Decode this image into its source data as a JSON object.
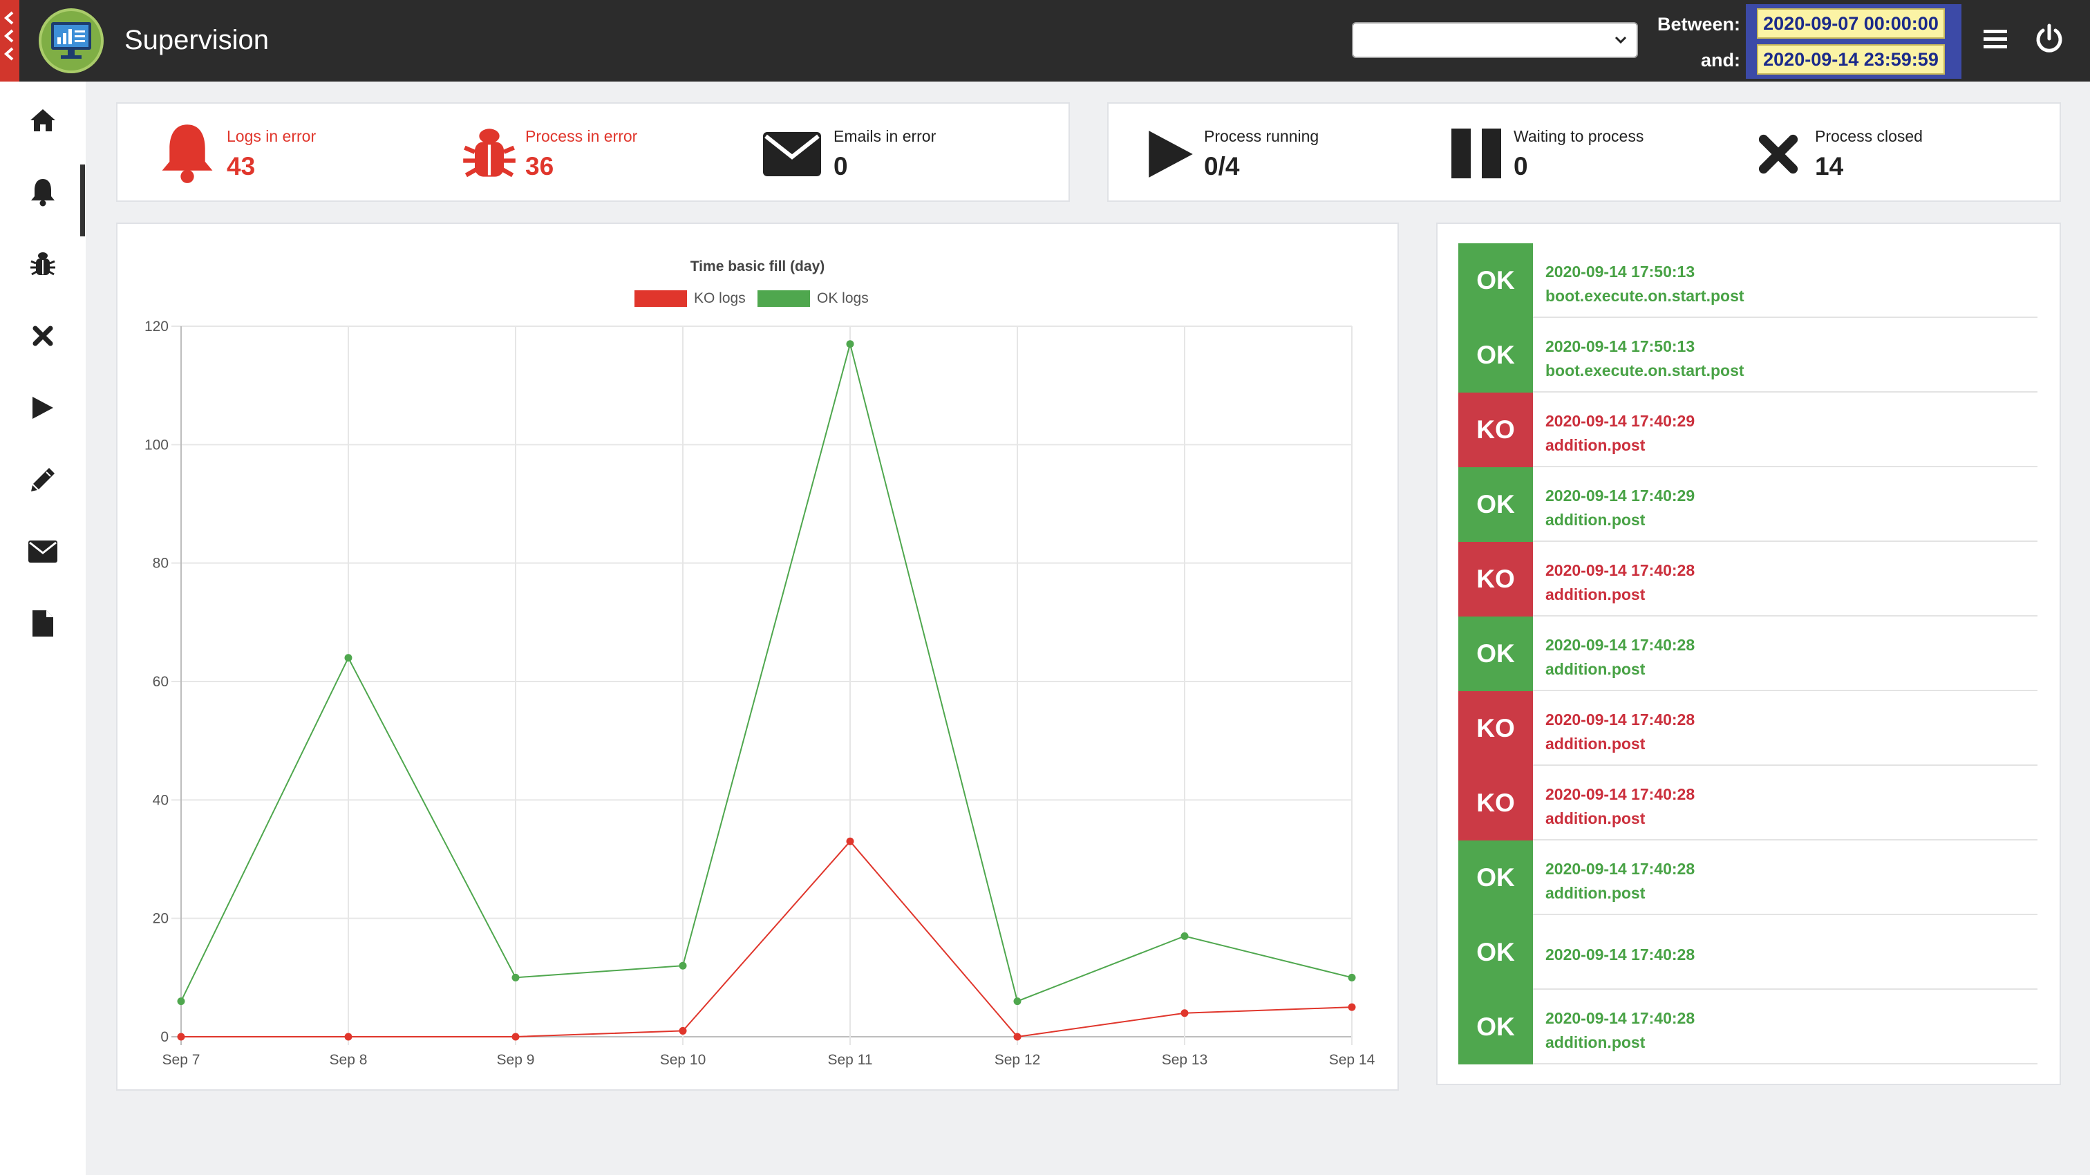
{
  "app": {
    "title": "Supervision"
  },
  "header": {
    "between_label": "Between:",
    "and_label": "and:",
    "date_from": "2020-09-07 00:00:00",
    "date_to": "2020-09-14 23:59:59",
    "process_select_value": ""
  },
  "sidebar": {
    "items": [
      {
        "name": "home",
        "icon": "home-icon"
      },
      {
        "name": "logs",
        "icon": "bell-icon"
      },
      {
        "name": "process-errors",
        "icon": "bug-icon"
      },
      {
        "name": "process-closed",
        "icon": "close-icon"
      },
      {
        "name": "process-running",
        "icon": "play-icon"
      },
      {
        "name": "edit",
        "icon": "pencil-icon"
      },
      {
        "name": "emails",
        "icon": "envelope-icon"
      },
      {
        "name": "documents",
        "icon": "file-icon"
      }
    ]
  },
  "stats_errors": [
    {
      "label": "Logs in error",
      "value": "43",
      "icon": "bell-icon",
      "color": "#e0362c"
    },
    {
      "label": "Process in error",
      "value": "36",
      "icon": "bug-icon",
      "color": "#e0362c"
    },
    {
      "label": "Emails in error",
      "value": "0",
      "icon": "envelope-icon",
      "color": "#222222"
    }
  ],
  "stats_process": [
    {
      "label": "Process running",
      "value": "0/4",
      "icon": "play-icon"
    },
    {
      "label": "Waiting to process",
      "value": "0",
      "icon": "pause-icon"
    },
    {
      "label": "Process closed",
      "value": "14",
      "icon": "close-icon"
    }
  ],
  "chart_data": {
    "type": "line",
    "title": "Time basic fill (day)",
    "categories": [
      "Sep 7",
      "Sep 8",
      "Sep 9",
      "Sep 10",
      "Sep 11",
      "Sep 12",
      "Sep 13",
      "Sep 14"
    ],
    "series": [
      {
        "name": "KO logs",
        "color": "#e0362c",
        "values": [
          0,
          0,
          0,
          1,
          33,
          0,
          4,
          5
        ]
      },
      {
        "name": "OK logs",
        "color": "#4fa74e",
        "values": [
          6,
          64,
          10,
          12,
          117,
          6,
          17,
          10
        ]
      }
    ],
    "ylim": [
      0,
      120
    ],
    "yticks": [
      0,
      20,
      40,
      60,
      80,
      100,
      120
    ],
    "grid": true,
    "legend": "top"
  },
  "logs": [
    {
      "status": "OK",
      "time": "2020-09-14 17:50:13",
      "name": "boot.execute.on.start.post"
    },
    {
      "status": "OK",
      "time": "2020-09-14 17:50:13",
      "name": "boot.execute.on.start.post"
    },
    {
      "status": "KO",
      "time": "2020-09-14 17:40:29",
      "name": "addition.post"
    },
    {
      "status": "OK",
      "time": "2020-09-14 17:40:29",
      "name": "addition.post"
    },
    {
      "status": "KO",
      "time": "2020-09-14 17:40:28",
      "name": "addition.post"
    },
    {
      "status": "OK",
      "time": "2020-09-14 17:40:28",
      "name": "addition.post"
    },
    {
      "status": "KO",
      "time": "2020-09-14 17:40:28",
      "name": "addition.post"
    },
    {
      "status": "KO",
      "time": "2020-09-14 17:40:28",
      "name": "addition.post"
    },
    {
      "status": "OK",
      "time": "2020-09-14 17:40:28",
      "name": "addition.post"
    },
    {
      "status": "OK",
      "time": "2020-09-14 17:40:28",
      "name": ""
    },
    {
      "status": "OK",
      "time": "2020-09-14 17:40:28",
      "name": "addition.post"
    }
  ]
}
